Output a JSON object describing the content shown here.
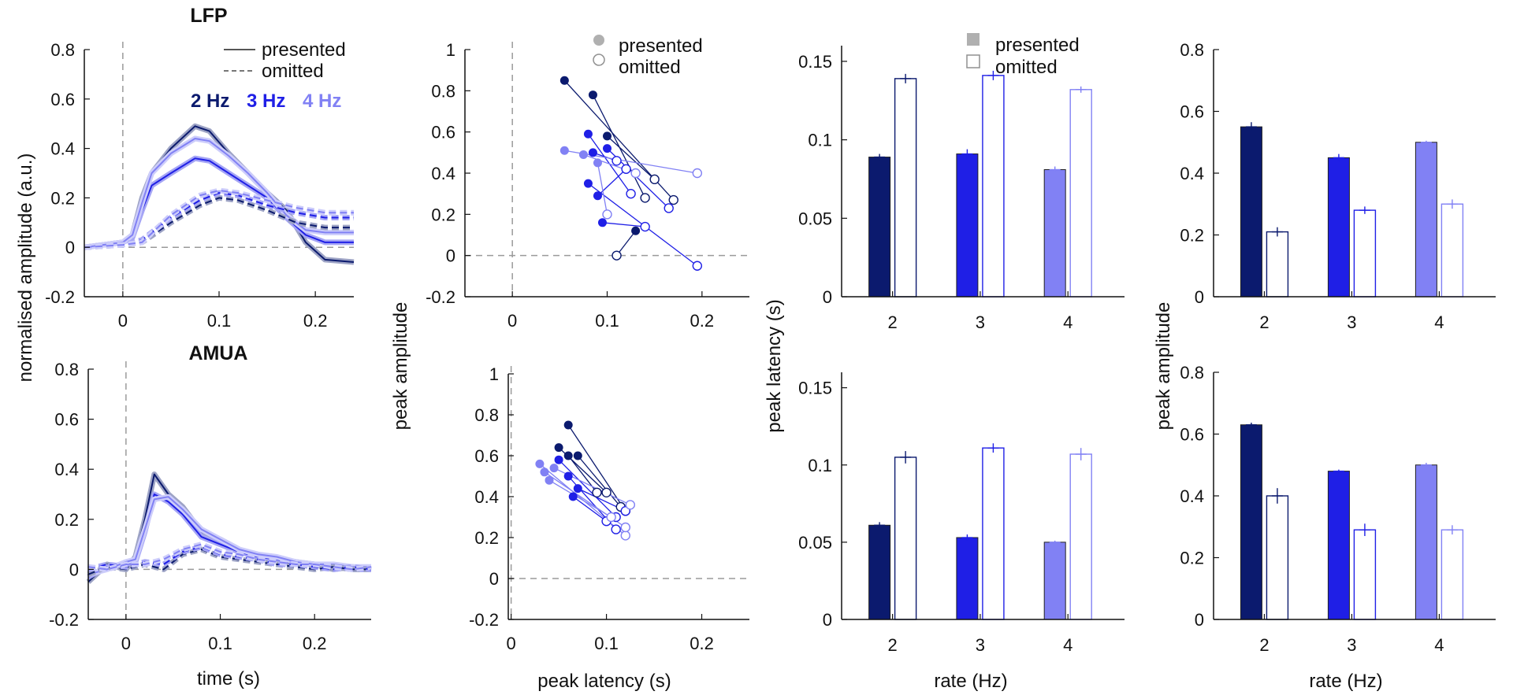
{
  "colors": {
    "hz2": "#0b1a6e",
    "hz3": "#1f1fe6",
    "hz4": "#8181f4",
    "grey": "#9a9a9a",
    "axis": "#111111"
  },
  "labels": {
    "lfp_title": "LFP",
    "amua_title": "AMUA",
    "y_norm": "normalised amplitude (a.u.)",
    "y_peak_amp": "peak amplitude",
    "y_peak_lat": "peak latency (s)",
    "x_time": "time (s)",
    "x_peak_lat": "peak latency (s)",
    "x_rate": "rate (Hz)",
    "presented": "presented",
    "omitted": "omitted",
    "hz2": "2 Hz",
    "hz3": "3 Hz",
    "hz4": "4 Hz"
  },
  "chart_data": [
    {
      "id": "lfp_timecourse",
      "type": "line",
      "title": "LFP",
      "xlabel": "",
      "ylabel": "normalised amplitude (a.u.)",
      "xlim": [
        -0.04,
        0.24
      ],
      "ylim": [
        -0.2,
        0.8
      ],
      "xticks": [
        "0",
        "0.1",
        "0.2"
      ],
      "yticks": [
        "-0.2",
        "0",
        "0.2",
        "0.4",
        "0.6",
        "0.8"
      ],
      "legend": [
        "presented",
        "omitted"
      ],
      "rate_legend": [
        "2 Hz",
        "3 Hz",
        "4 Hz"
      ],
      "series": [
        {
          "name": "2 Hz presented",
          "color": "hz2",
          "dash": false,
          "x": [
            -0.04,
            0,
            0.01,
            0.02,
            0.03,
            0.05,
            0.075,
            0.09,
            0.11,
            0.13,
            0.15,
            0.17,
            0.19,
            0.21,
            0.24
          ],
          "y": [
            0,
            0.02,
            0.05,
            0.2,
            0.3,
            0.4,
            0.49,
            0.47,
            0.38,
            0.3,
            0.22,
            0.15,
            0.02,
            -0.05,
            -0.06
          ]
        },
        {
          "name": "3 Hz presented",
          "color": "hz3",
          "dash": false,
          "x": [
            -0.04,
            0,
            0.01,
            0.02,
            0.03,
            0.05,
            0.075,
            0.09,
            0.11,
            0.13,
            0.15,
            0.17,
            0.19,
            0.21,
            0.24
          ],
          "y": [
            0,
            0.02,
            0.04,
            0.15,
            0.25,
            0.3,
            0.36,
            0.35,
            0.3,
            0.25,
            0.2,
            0.12,
            0.05,
            0.02,
            0.02
          ]
        },
        {
          "name": "4 Hz presented",
          "color": "hz4",
          "dash": false,
          "x": [
            -0.04,
            0,
            0.01,
            0.02,
            0.03,
            0.05,
            0.075,
            0.09,
            0.11,
            0.13,
            0.15,
            0.17,
            0.19,
            0.21,
            0.24
          ],
          "y": [
            0,
            0.02,
            0.05,
            0.18,
            0.3,
            0.38,
            0.44,
            0.43,
            0.37,
            0.3,
            0.22,
            0.13,
            0.07,
            0.06,
            0.06
          ]
        },
        {
          "name": "2 Hz omitted",
          "color": "hz2",
          "dash": true,
          "x": [
            -0.04,
            0,
            0.02,
            0.05,
            0.08,
            0.1,
            0.12,
            0.15,
            0.18,
            0.21,
            0.24
          ],
          "y": [
            0,
            0.01,
            0.02,
            0.1,
            0.17,
            0.2,
            0.19,
            0.15,
            0.1,
            0.08,
            0.08
          ]
        },
        {
          "name": "3 Hz omitted",
          "color": "hz3",
          "dash": true,
          "x": [
            -0.04,
            0,
            0.02,
            0.05,
            0.08,
            0.1,
            0.12,
            0.15,
            0.18,
            0.21,
            0.24
          ],
          "y": [
            0,
            0.01,
            0.03,
            0.12,
            0.19,
            0.22,
            0.21,
            0.17,
            0.14,
            0.12,
            0.12
          ]
        },
        {
          "name": "4 Hz omitted",
          "color": "hz4",
          "dash": true,
          "x": [
            -0.04,
            0,
            0.02,
            0.05,
            0.08,
            0.1,
            0.12,
            0.15,
            0.18,
            0.21,
            0.24
          ],
          "y": [
            0,
            0.01,
            0.02,
            0.13,
            0.21,
            0.23,
            0.22,
            0.19,
            0.16,
            0.14,
            0.14
          ]
        }
      ]
    },
    {
      "id": "amua_timecourse",
      "type": "line",
      "title": "AMUA",
      "xlabel": "time (s)",
      "ylabel": "",
      "xlim": [
        -0.04,
        0.26
      ],
      "ylim": [
        -0.2,
        0.8
      ],
      "xticks": [
        "0",
        "0.1",
        "0.2"
      ],
      "yticks": [
        "-0.2",
        "0",
        "0.2",
        "0.4",
        "0.6",
        "0.8"
      ],
      "series": [
        {
          "name": "2 Hz presented",
          "color": "hz2",
          "dash": false,
          "x": [
            -0.04,
            -0.02,
            0,
            0.01,
            0.02,
            0.03,
            0.045,
            0.06,
            0.08,
            0.1,
            0.12,
            0.14,
            0.16,
            0.18,
            0.2,
            0.22,
            0.24,
            0.26
          ],
          "y": [
            -0.05,
            0.02,
            0.0,
            0.05,
            0.2,
            0.38,
            0.3,
            0.25,
            0.15,
            0.12,
            0.08,
            0.05,
            0.04,
            0.03,
            0.02,
            0.0,
            0.01,
            0.0
          ]
        },
        {
          "name": "3 Hz presented",
          "color": "hz3",
          "dash": false,
          "x": [
            -0.04,
            -0.02,
            0,
            0.01,
            0.02,
            0.03,
            0.045,
            0.06,
            0.08,
            0.1,
            0.12,
            0.14,
            0.16,
            0.18,
            0.2,
            0.22,
            0.24,
            0.26
          ],
          "y": [
            -0.03,
            0.01,
            0.02,
            0.03,
            0.15,
            0.3,
            0.27,
            0.22,
            0.13,
            0.1,
            0.07,
            0.05,
            0.04,
            0.02,
            0.02,
            0.01,
            0.0,
            0.0
          ]
        },
        {
          "name": "4 Hz presented",
          "color": "hz4",
          "dash": false,
          "x": [
            -0.04,
            -0.02,
            0,
            0.01,
            0.02,
            0.03,
            0.045,
            0.06,
            0.08,
            0.1,
            0.12,
            0.14,
            0.16,
            0.18,
            0.2,
            0.22,
            0.24,
            0.26
          ],
          "y": [
            -0.02,
            0.0,
            0.03,
            0.04,
            0.16,
            0.28,
            0.29,
            0.24,
            0.16,
            0.12,
            0.08,
            0.06,
            0.05,
            0.03,
            0.02,
            0.02,
            0.01,
            0.01
          ]
        },
        {
          "name": "2 Hz omitted",
          "color": "hz2",
          "dash": true,
          "x": [
            -0.04,
            -0.02,
            0,
            0.02,
            0.04,
            0.06,
            0.08,
            0.1,
            0.12,
            0.14,
            0.16,
            0.18,
            0.2,
            0.22,
            0.24,
            0.26
          ],
          "y": [
            -0.02,
            0.01,
            0.0,
            0.02,
            0.0,
            0.06,
            0.08,
            0.05,
            0.04,
            0.03,
            0.02,
            0.01,
            0.0,
            0.01,
            0.0,
            0.0
          ]
        },
        {
          "name": "3 Hz omitted",
          "color": "hz3",
          "dash": true,
          "x": [
            -0.04,
            -0.02,
            0,
            0.02,
            0.04,
            0.06,
            0.08,
            0.1,
            0.12,
            0.14,
            0.16,
            0.18,
            0.2,
            0.22,
            0.24,
            0.26
          ],
          "y": [
            0.0,
            0.02,
            0.01,
            0.03,
            0.02,
            0.07,
            0.09,
            0.06,
            0.05,
            0.04,
            0.02,
            0.02,
            0.01,
            0.0,
            0.01,
            0.0
          ]
        },
        {
          "name": "4 Hz omitted",
          "color": "hz4",
          "dash": true,
          "x": [
            -0.04,
            -0.02,
            0,
            0.02,
            0.04,
            0.06,
            0.08,
            0.1,
            0.12,
            0.14,
            0.16,
            0.18,
            0.2,
            0.22,
            0.24,
            0.26
          ],
          "y": [
            0.01,
            0.0,
            0.02,
            0.02,
            0.04,
            0.08,
            0.1,
            0.07,
            0.06,
            0.04,
            0.03,
            0.02,
            0.02,
            0.01,
            0.0,
            0.01
          ]
        }
      ]
    },
    {
      "id": "lfp_scatter",
      "type": "scatter",
      "xlabel": "",
      "ylabel": "",
      "xlim": [
        -0.05,
        0.25
      ],
      "ylim": [
        -0.2,
        1.0
      ],
      "xticks": [
        "0",
        "0.1",
        "0.2"
      ],
      "yticks": [
        "-0.2",
        "0",
        "0.2",
        "0.4",
        "0.6",
        "0.8",
        "1"
      ],
      "legend": [
        "presented",
        "omitted"
      ],
      "pairs": [
        {
          "color": "hz2",
          "presented": [
            0.055,
            0.85
          ],
          "omitted": [
            0.17,
            0.27
          ]
        },
        {
          "color": "hz2",
          "presented": [
            0.085,
            0.78
          ],
          "omitted": [
            0.14,
            0.28
          ]
        },
        {
          "color": "hz2",
          "presented": [
            0.13,
            0.12
          ],
          "omitted": [
            0.11,
            0.0
          ]
        },
        {
          "color": "hz2",
          "presented": [
            0.1,
            0.58
          ],
          "omitted": [
            0.15,
            0.37
          ]
        },
        {
          "color": "hz3",
          "presented": [
            0.08,
            0.59
          ],
          "omitted": [
            0.125,
            0.3
          ]
        },
        {
          "color": "hz3",
          "presented": [
            0.08,
            0.35
          ],
          "omitted": [
            0.195,
            -0.05
          ]
        },
        {
          "color": "hz3",
          "presented": [
            0.1,
            0.52
          ],
          "omitted": [
            0.165,
            0.23
          ]
        },
        {
          "color": "hz3",
          "presented": [
            0.085,
            0.5
          ],
          "omitted": [
            0.11,
            0.46
          ]
        },
        {
          "color": "hz3",
          "presented": [
            0.095,
            0.16
          ],
          "omitted": [
            0.14,
            0.14
          ]
        },
        {
          "color": "hz3",
          "presented": [
            0.09,
            0.29
          ],
          "omitted": [
            0.12,
            0.42
          ]
        },
        {
          "color": "hz4",
          "presented": [
            0.055,
            0.51
          ],
          "omitted": [
            0.195,
            0.4
          ]
        },
        {
          "color": "hz4",
          "presented": [
            0.075,
            0.49
          ],
          "omitted": [
            0.13,
            0.4
          ]
        },
        {
          "color": "hz4",
          "presented": [
            0.09,
            0.45
          ],
          "omitted": [
            0.1,
            0.2
          ]
        }
      ]
    },
    {
      "id": "amua_scatter",
      "type": "scatter",
      "xlabel": "peak latency (s)",
      "ylabel": "peak amplitude",
      "xlim": [
        -0.003,
        0.25
      ],
      "ylim": [
        -0.2,
        1.0
      ],
      "xticks": [
        "0",
        "0.1",
        "0.2"
      ],
      "yticks": [
        "-0.2",
        "0",
        "0.2",
        "0.4",
        "0.6",
        "0.8",
        "1"
      ],
      "pairs": [
        {
          "color": "hz2",
          "presented": [
            0.06,
            0.75
          ],
          "omitted": [
            0.12,
            0.33
          ]
        },
        {
          "color": "hz2",
          "presented": [
            0.05,
            0.64
          ],
          "omitted": [
            0.1,
            0.42
          ]
        },
        {
          "color": "hz2",
          "presented": [
            0.07,
            0.6
          ],
          "omitted": [
            0.115,
            0.35
          ]
        },
        {
          "color": "hz2",
          "presented": [
            0.06,
            0.6
          ],
          "omitted": [
            0.09,
            0.42
          ]
        },
        {
          "color": "hz3",
          "presented": [
            0.05,
            0.58
          ],
          "omitted": [
            0.11,
            0.3
          ]
        },
        {
          "color": "hz3",
          "presented": [
            0.06,
            0.5
          ],
          "omitted": [
            0.11,
            0.24
          ]
        },
        {
          "color": "hz3",
          "presented": [
            0.07,
            0.44
          ],
          "omitted": [
            0.12,
            0.33
          ]
        },
        {
          "color": "hz3",
          "presented": [
            0.065,
            0.4
          ],
          "omitted": [
            0.1,
            0.28
          ]
        },
        {
          "color": "hz4",
          "presented": [
            0.03,
            0.56
          ],
          "omitted": [
            0.12,
            0.21
          ]
        },
        {
          "color": "hz4",
          "presented": [
            0.035,
            0.52
          ],
          "omitted": [
            0.12,
            0.25
          ]
        },
        {
          "color": "hz4",
          "presented": [
            0.04,
            0.48
          ],
          "omitted": [
            0.105,
            0.3
          ]
        },
        {
          "color": "hz4",
          "presented": [
            0.045,
            0.54
          ],
          "omitted": [
            0.125,
            0.36
          ]
        }
      ]
    },
    {
      "id": "lfp_latency_bars",
      "type": "bar",
      "xlabel": "",
      "ylabel": "peak latency (s)",
      "categories": [
        "2",
        "3",
        "4"
      ],
      "ylim": [
        0,
        0.16
      ],
      "yticks": [
        "0",
        "0.05",
        "0.1",
        "0.15"
      ],
      "legend": [
        "presented",
        "omitted"
      ],
      "series": [
        {
          "name": "presented",
          "values": [
            0.089,
            0.091,
            0.081
          ],
          "errors": [
            0.002,
            0.003,
            0.002
          ]
        },
        {
          "name": "omitted",
          "values": [
            0.139,
            0.141,
            0.132
          ],
          "errors": [
            0.003,
            0.003,
            0.002
          ]
        }
      ]
    },
    {
      "id": "lfp_amplitude_bars",
      "type": "bar",
      "xlabel": "",
      "ylabel": "peak amplitude",
      "categories": [
        "2",
        "3",
        "4"
      ],
      "ylim": [
        0,
        0.8
      ],
      "yticks": [
        "0",
        "0.2",
        "0.4",
        "0.6",
        "0.8"
      ],
      "series": [
        {
          "name": "presented",
          "values": [
            0.55,
            0.45,
            0.5
          ],
          "errors": [
            0.015,
            0.012,
            0.005
          ]
        },
        {
          "name": "omitted",
          "values": [
            0.21,
            0.28,
            0.3
          ],
          "errors": [
            0.015,
            0.012,
            0.015
          ]
        }
      ]
    },
    {
      "id": "amua_latency_bars",
      "type": "bar",
      "xlabel": "rate (Hz)",
      "ylabel": "",
      "categories": [
        "2",
        "3",
        "4"
      ],
      "ylim": [
        0,
        0.16
      ],
      "yticks": [
        "0",
        "0.05",
        "0.1",
        "0.15"
      ],
      "series": [
        {
          "name": "presented",
          "values": [
            0.061,
            0.053,
            0.05
          ],
          "errors": [
            0.002,
            0.002,
            0.001
          ]
        },
        {
          "name": "omitted",
          "values": [
            0.105,
            0.111,
            0.107
          ],
          "errors": [
            0.004,
            0.003,
            0.004
          ]
        }
      ]
    },
    {
      "id": "amua_amplitude_bars",
      "type": "bar",
      "xlabel": "rate (Hz)",
      "ylabel": "",
      "categories": [
        "2",
        "3",
        "4"
      ],
      "ylim": [
        0,
        0.8
      ],
      "yticks": [
        "0",
        "0.2",
        "0.4",
        "0.6",
        "0.8"
      ],
      "series": [
        {
          "name": "presented",
          "values": [
            0.63,
            0.48,
            0.5
          ],
          "errors": [
            0.007,
            0.005,
            0.007
          ]
        },
        {
          "name": "omitted",
          "values": [
            0.4,
            0.29,
            0.29
          ],
          "errors": [
            0.025,
            0.02,
            0.015
          ]
        }
      ]
    }
  ]
}
